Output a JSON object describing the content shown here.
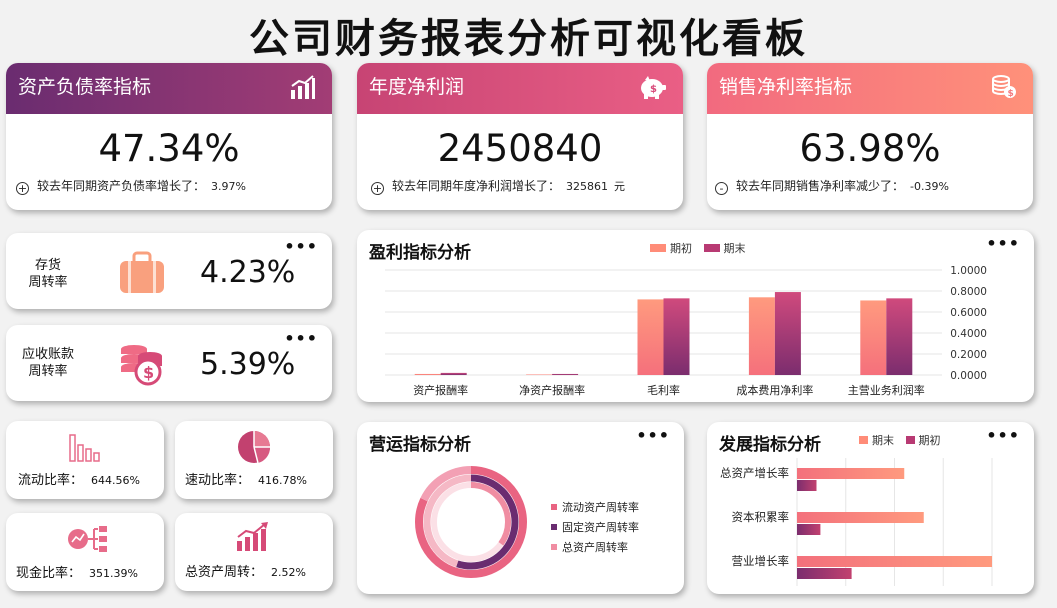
{
  "page_title": "公司财务报表分析可视化看板",
  "kpis": {
    "debt": {
      "title": "资产负债率指标",
      "value": "47.34%",
      "note": "较去年同期资产负债率增长了：",
      "change": "3.97%",
      "sign": "+"
    },
    "profit": {
      "title": "年度净利润",
      "value": "2450840",
      "note": "较去年同期年度净利润增长了：",
      "change": "325861",
      "unit": "元",
      "sign": "+"
    },
    "margin": {
      "title": "销售净利率指标",
      "value": "63.98%",
      "note": "较去年同期销售净利率减少了：",
      "change": "-0.39%",
      "sign": "-"
    }
  },
  "turnover": {
    "inventory": {
      "label_1": "存货",
      "label_2": "周转率",
      "value": "4.23%"
    },
    "receivable": {
      "label_1": "应收账款",
      "label_2": "周转率",
      "value": "5.39%"
    }
  },
  "minis": {
    "current": {
      "label": "流动比率：",
      "value": "644.56%"
    },
    "quick": {
      "label": "速动比率：",
      "value": "416.78%"
    },
    "cash": {
      "label": "现金比率：",
      "value": "351.39%"
    },
    "asset": {
      "label": "总资产周转：",
      "value": "2.52%"
    }
  },
  "more_label": "•••",
  "colors": {
    "purple": "#7b2d6e",
    "pink": "#e0567a",
    "salmon": "#ff8c78",
    "magenta": "#b83a73"
  },
  "icons": [
    "bar-chart-icon",
    "piggy-bank-icon",
    "coins-icon",
    "briefcase-icon",
    "money-stack-icon",
    "column-chart-icon",
    "pie-chart-icon",
    "flow-icon",
    "growth-chart-icon"
  ],
  "chart_data": [
    {
      "type": "bar",
      "title": "盈利指标分析",
      "categories": [
        "资产报酬率",
        "净资产报酬率",
        "毛利率",
        "成本费用净利率",
        "主营业务利润率"
      ],
      "series": [
        {
          "name": "期初",
          "values": [
            0.01,
            0.005,
            0.72,
            0.74,
            0.71
          ]
        },
        {
          "name": "期末",
          "values": [
            0.02,
            0.01,
            0.73,
            0.79,
            0.73
          ]
        }
      ],
      "ylim": [
        0,
        1
      ],
      "yticks": [
        "1.0000",
        "0.8000",
        "0.6000",
        "0.4000",
        "0.2000",
        "0.0000"
      ],
      "legend": "top"
    },
    {
      "type": "pie",
      "title": "营运指标分析",
      "labels": [
        "流动资产周转率",
        "固定资产周转率",
        "总资产周转率"
      ],
      "values": [
        1,
        1,
        1
      ],
      "legend": "right"
    },
    {
      "type": "bar",
      "orientation": "horizontal",
      "title": "发展指标分析",
      "categories": [
        "总资产增长率",
        "资本积累率",
        "营业增长率"
      ],
      "series": [
        {
          "name": "期末",
          "values": [
            0.55,
            0.65,
            1.0
          ]
        },
        {
          "name": "期初",
          "values": [
            0.1,
            0.12,
            0.28
          ]
        }
      ],
      "legend": "top"
    }
  ]
}
